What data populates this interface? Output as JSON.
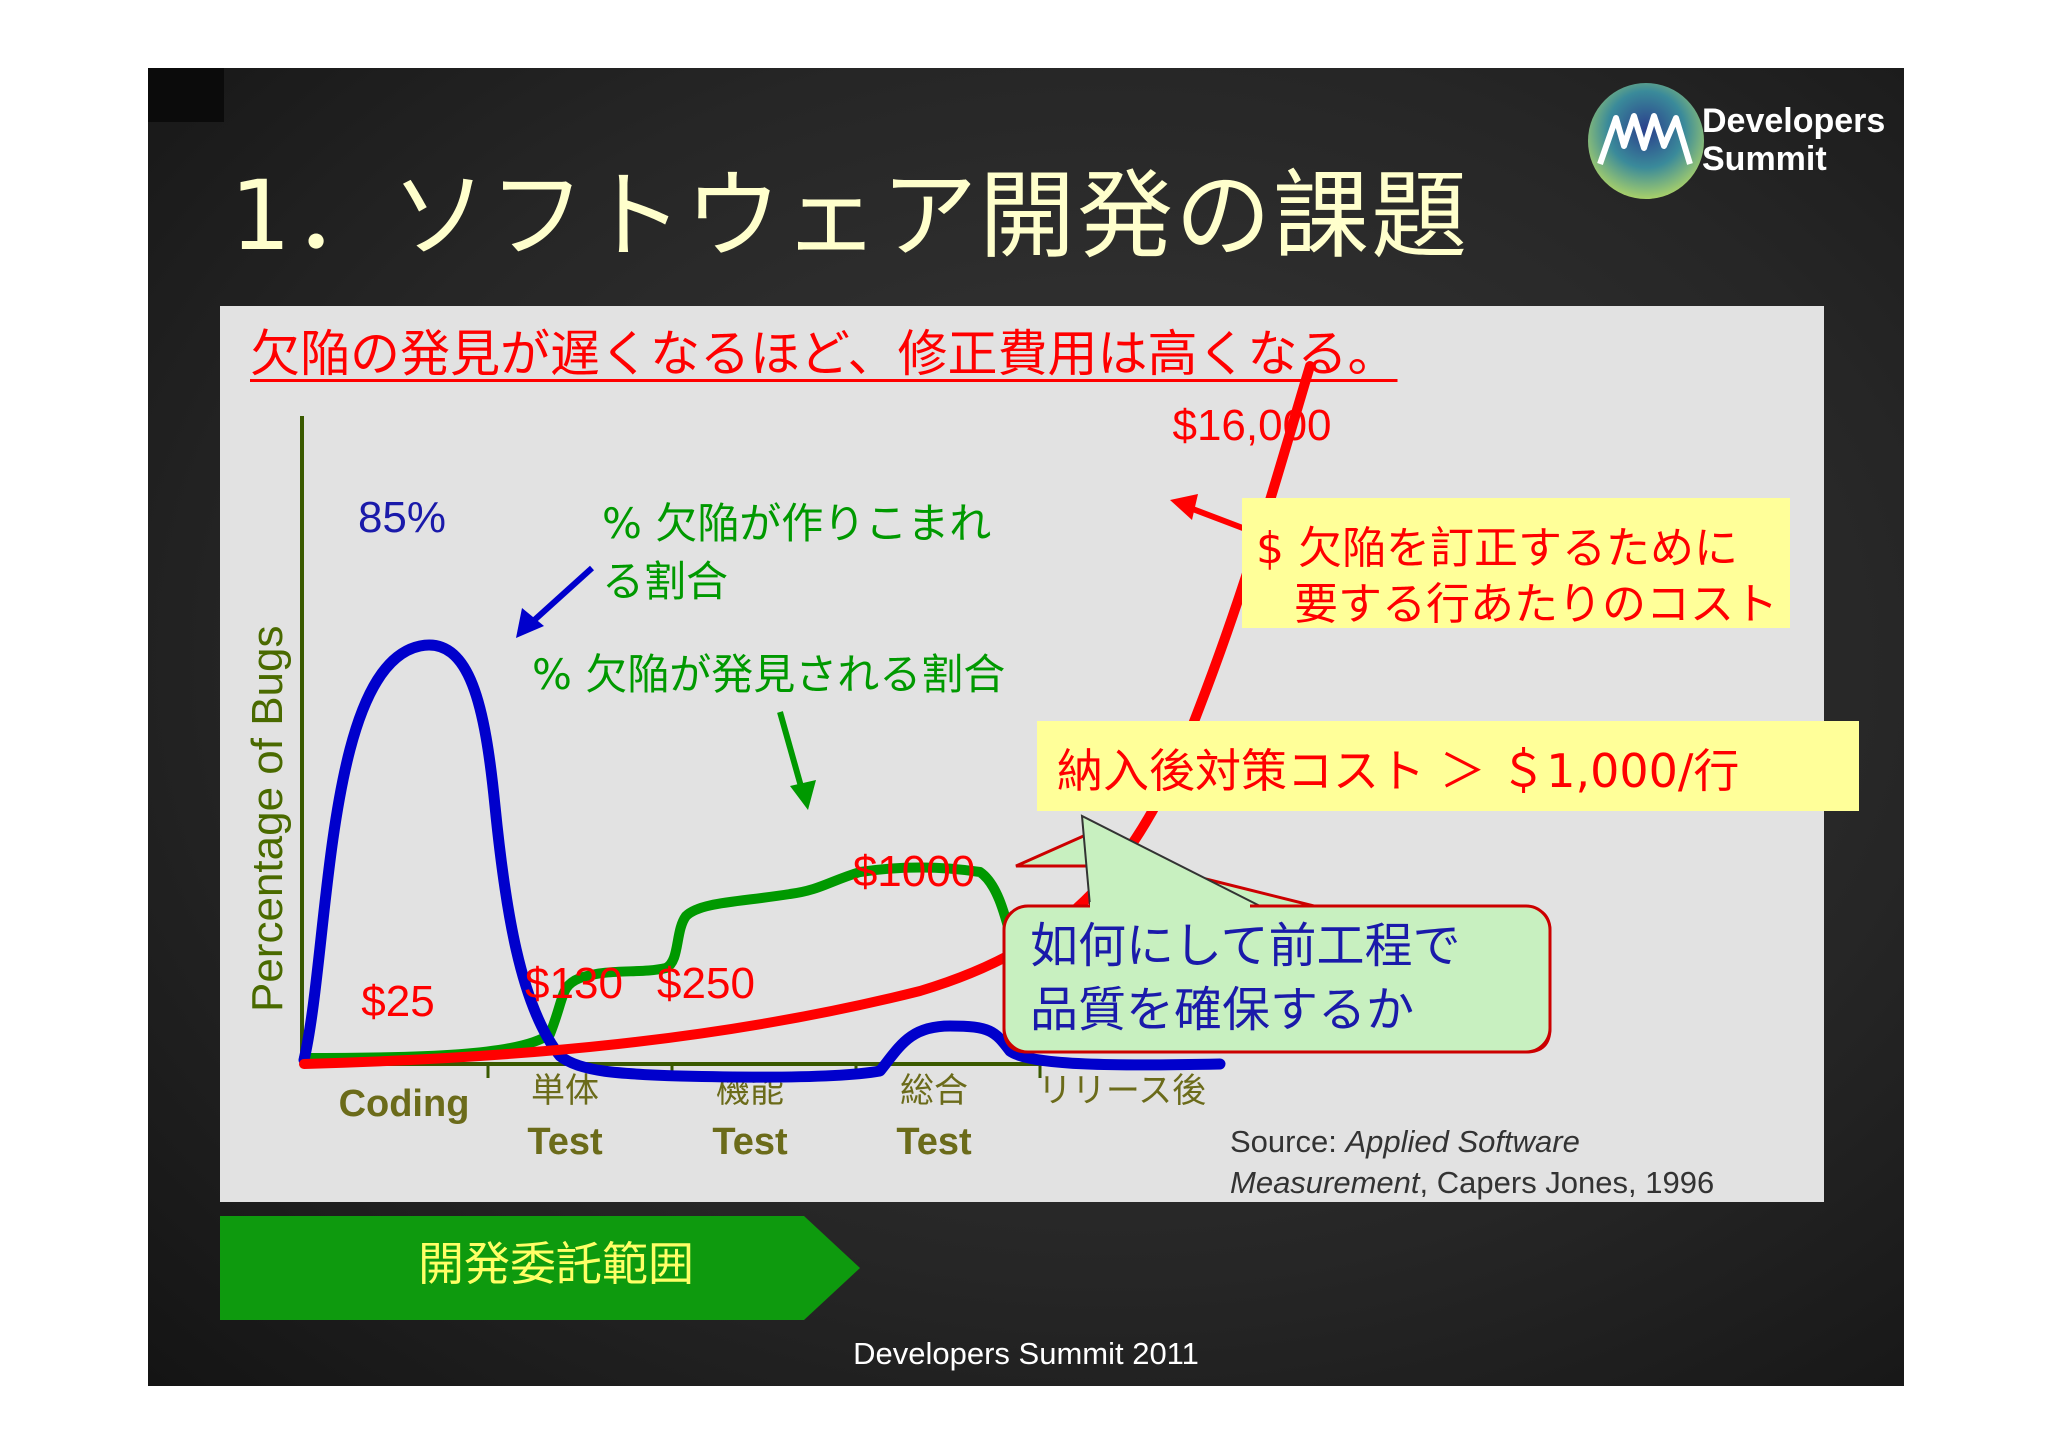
{
  "slide": {
    "title": "1．ソフトウェア開発の課題",
    "logo": {
      "line1": "Developers",
      "line2": "Summit"
    },
    "headline": "欠陥の発見が遅くなるほど、修正費用は高くなる。",
    "callouts": {
      "cost_per_line": [
        "$ 欠陥を訂正するために",
        "要する行あたりのコスト"
      ],
      "post_delivery": "納入後対策コスト ＞ ＄1,000/行",
      "question": [
        "如何にして前工程で",
        "品質を確保するか"
      ]
    },
    "source": {
      "prefix": "Source: ",
      "italic1": "Applied Software",
      "italic2": "Measurement",
      "suffix": ", Capers Jones, 1996"
    },
    "banner": "開発委託範囲",
    "footer": "Developers Summit 2011"
  },
  "chart_data": {
    "type": "line",
    "ylabel": "Percentage of Bugs",
    "categories": [
      {
        "line1": "Coding",
        "line2": ""
      },
      {
        "line1": "単体",
        "line2": "Test"
      },
      {
        "line1": "機能",
        "line2": "Test"
      },
      {
        "line1": "総合",
        "line2": "Test"
      },
      {
        "line1": "リリース後",
        "line2": ""
      }
    ],
    "series": [
      {
        "name": "% 欠陥が作りこまれる割合",
        "label_lines": [
          "% 欠陥が作りこまれ",
          "る割合"
        ],
        "color": "#0000cc",
        "peak_label": "85%"
      },
      {
        "name": "% 欠陥が発見される割合",
        "label_lines": [
          "% 欠陥が発見される割合"
        ],
        "color": "#009900"
      },
      {
        "name": "$ 欠陥を訂正するために要する行あたりのコスト",
        "color": "#ff0000",
        "cost_labels": [
          "$25",
          "$130",
          "$250",
          "$1000",
          "$16,000"
        ]
      }
    ],
    "colors": {
      "axis": "#3a5a00",
      "tick_label": "#6b6b1a"
    }
  }
}
